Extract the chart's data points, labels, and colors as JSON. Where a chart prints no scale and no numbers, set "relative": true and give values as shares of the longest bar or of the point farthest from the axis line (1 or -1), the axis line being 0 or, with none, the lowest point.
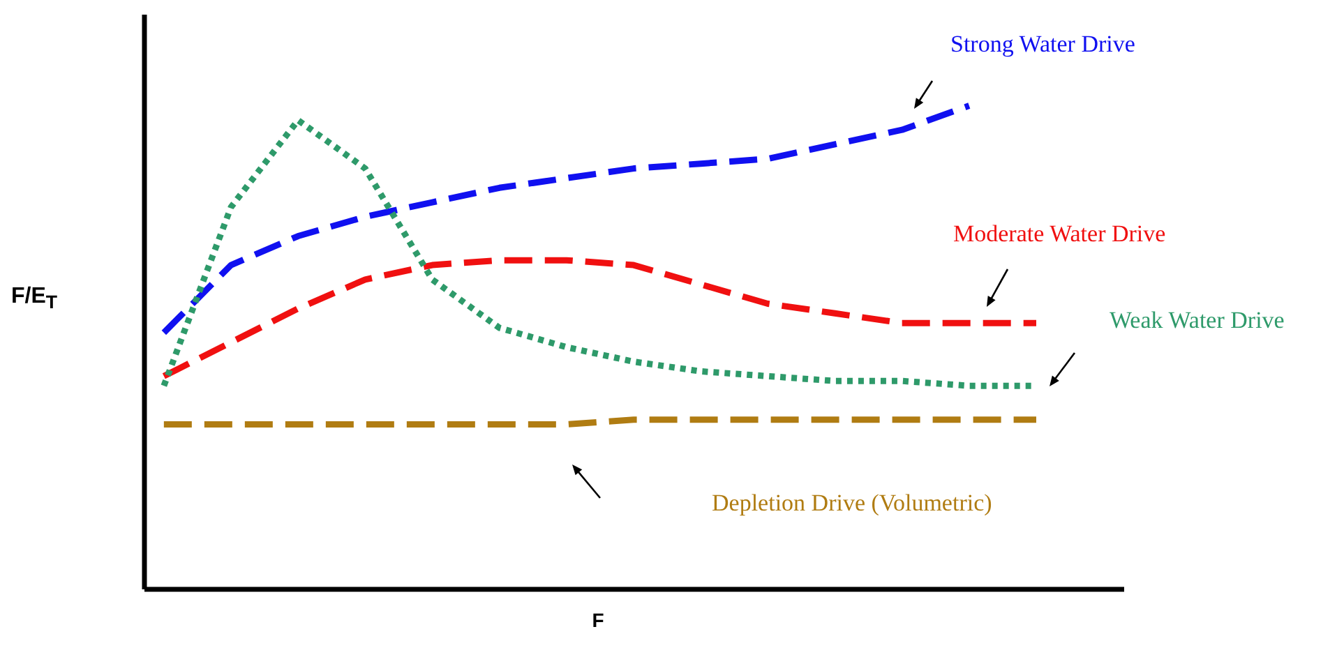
{
  "chart_data": {
    "type": "line",
    "relative": true,
    "xlabel": "F",
    "ylabel": "F/E$_{T}$",
    "categories": [
      null,
      null,
      null,
      null,
      null,
      null,
      null,
      null,
      null,
      null,
      null,
      null,
      null,
      null,
      null
    ],
    "series": [
      {
        "name": "Strong Water Drive",
        "color": "#1010f0",
        "line_style": "dashed",
        "values": [
          0.53,
          0.67,
          0.73,
          0.77,
          0.8,
          0.83,
          0.85,
          0.87,
          0.88,
          0.89,
          0.92,
          0.95,
          1.0,
          null,
          null
        ]
      },
      {
        "name": "Moderate Water Drive",
        "color": "#f01010",
        "line_style": "dashed",
        "values": [
          0.44,
          0.51,
          0.58,
          0.64,
          0.67,
          0.68,
          0.68,
          0.67,
          0.63,
          0.59,
          0.57,
          0.55,
          0.55,
          0.55,
          null
        ]
      },
      {
        "name": "Weak Water Drive",
        "color": "#2e9a6a",
        "line_style": "dotted",
        "values": [
          0.42,
          0.79,
          0.97,
          0.87,
          0.64,
          0.54,
          0.5,
          0.47,
          0.45,
          0.44,
          0.43,
          0.43,
          0.42,
          0.42,
          null
        ]
      },
      {
        "name": "Depletion Drive (Volumetric)",
        "color": "#b07c12",
        "line_style": "dashed",
        "values": [
          0.34,
          0.34,
          0.34,
          0.34,
          0.34,
          0.34,
          0.34,
          0.35,
          0.35,
          0.35,
          0.35,
          0.35,
          0.35,
          0.35,
          null
        ]
      }
    ]
  }
}
